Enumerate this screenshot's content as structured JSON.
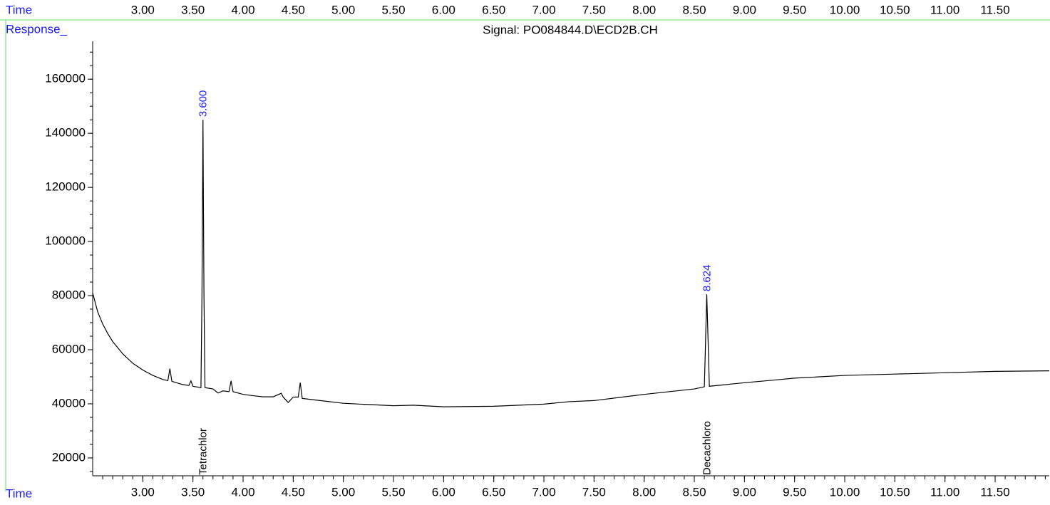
{
  "chart_data": {
    "type": "line",
    "title": "Signal: PO084844.D\\ECD2B.CH",
    "x_label": "Time",
    "y_label": "Response_",
    "x": [
      2.5,
      2.55,
      2.6,
      2.65,
      2.7,
      2.8,
      2.9,
      3.0,
      3.1,
      3.2,
      3.25,
      3.27,
      3.29,
      3.4,
      3.46,
      3.48,
      3.5,
      3.58,
      3.59,
      3.6,
      3.61,
      3.62,
      3.7,
      3.75,
      3.8,
      3.86,
      3.88,
      3.9,
      4.0,
      4.1,
      4.2,
      4.3,
      4.38,
      4.4,
      4.45,
      4.5,
      4.55,
      4.57,
      4.59,
      4.7,
      5.0,
      5.5,
      5.7,
      6.0,
      6.5,
      7.0,
      7.25,
      7.5,
      8.0,
      8.5,
      8.6,
      8.61,
      8.624,
      8.64,
      8.65,
      9.0,
      9.3,
      9.5,
      10.0,
      10.5,
      11.0,
      11.5,
      12.04
    ],
    "values": [
      81000,
      74000,
      69500,
      66000,
      63000,
      58500,
      55000,
      52500,
      50500,
      49000,
      48600,
      53000,
      48300,
      47100,
      46800,
      48500,
      46500,
      46000,
      80000,
      145000,
      80000,
      46000,
      45500,
      44000,
      44800,
      44500,
      48500,
      44500,
      43500,
      43000,
      42600,
      42600,
      43900,
      42500,
      40500,
      42500,
      42500,
      47800,
      42000,
      41500,
      40200,
      39300,
      39500,
      38900,
      39100,
      39900,
      40800,
      41200,
      43500,
      45500,
      46300,
      60000,
      80500,
      60000,
      46500,
      47800,
      48800,
      49500,
      50500,
      51000,
      51500,
      52000,
      52200
    ],
    "color": "#000000",
    "xlim": [
      2.5,
      12.04
    ],
    "ylim": [
      13400,
      174000
    ],
    "xticks": [
      {
        "value": 3,
        "label": "3.00"
      },
      {
        "value": 3.5,
        "label": "3.50"
      },
      {
        "value": 4,
        "label": "4.00"
      },
      {
        "value": 4.5,
        "label": "4.50"
      },
      {
        "value": 5,
        "label": "5.00"
      },
      {
        "value": 5.5,
        "label": "5.50"
      },
      {
        "value": 6,
        "label": "6.00"
      },
      {
        "value": 6.5,
        "label": "6.50"
      },
      {
        "value": 7,
        "label": "7.00"
      },
      {
        "value": 7.5,
        "label": "7.50"
      },
      {
        "value": 8,
        "label": "8.00"
      },
      {
        "value": 8.5,
        "label": "8.50"
      },
      {
        "value": 9,
        "label": "9.00"
      },
      {
        "value": 9.5,
        "label": "9.50"
      },
      {
        "value": 10,
        "label": "10.00"
      },
      {
        "value": 10.5,
        "label": "10.50"
      },
      {
        "value": 11,
        "label": "11.00"
      },
      {
        "value": 11.5,
        "label": "11.50"
      }
    ],
    "yticks": [
      20000,
      40000,
      60000,
      80000,
      100000,
      120000,
      140000,
      160000
    ],
    "peaks": [
      {
        "x": 3.6,
        "label": "3.600",
        "compound": "Tetrachlor"
      },
      {
        "x": 8.624,
        "label": "8.624",
        "compound": "Decachloro"
      }
    ]
  }
}
